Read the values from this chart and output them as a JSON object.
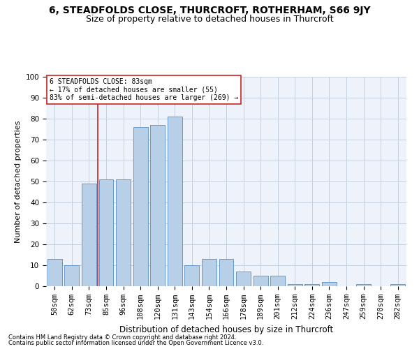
{
  "title": "6, STEADFOLDS CLOSE, THURCROFT, ROTHERHAM, S66 9JY",
  "subtitle": "Size of property relative to detached houses in Thurcroft",
  "xlabel": "Distribution of detached houses by size in Thurcroft",
  "ylabel": "Number of detached properties",
  "categories": [
    "50sqm",
    "62sqm",
    "73sqm",
    "85sqm",
    "96sqm",
    "108sqm",
    "120sqm",
    "131sqm",
    "143sqm",
    "154sqm",
    "166sqm",
    "178sqm",
    "189sqm",
    "201sqm",
    "212sqm",
    "224sqm",
    "236sqm",
    "247sqm",
    "259sqm",
    "270sqm",
    "282sqm"
  ],
  "values": [
    13,
    10,
    49,
    51,
    51,
    76,
    77,
    81,
    10,
    13,
    13,
    7,
    5,
    5,
    1,
    1,
    2,
    0,
    1,
    0,
    1
  ],
  "bar_color": "#b8cfe8",
  "bar_edge_color": "#6699cc",
  "vline_color": "#cc2222",
  "vline_x_idx": 2.5,
  "annotation_title": "6 STEADFOLDS CLOSE: 83sqm",
  "annotation_line1": "← 17% of detached houses are smaller (55)",
  "annotation_line2": "83% of semi-detached houses are larger (269) →",
  "annotation_box_color": "#ffffff",
  "annotation_box_edge": "#cc2222",
  "footer1": "Contains HM Land Registry data © Crown copyright and database right 2024.",
  "footer2": "Contains public sector information licensed under the Open Government Licence v3.0.",
  "ylim": [
    0,
    100
  ],
  "yticks": [
    0,
    10,
    20,
    30,
    40,
    50,
    60,
    70,
    80,
    90,
    100
  ],
  "background_color": "#eef2fa",
  "grid_color": "#c5d0e0",
  "title_fontsize": 10,
  "subtitle_fontsize": 9,
  "xlabel_fontsize": 8.5,
  "ylabel_fontsize": 8,
  "tick_fontsize": 7.5,
  "annotation_fontsize": 7,
  "footer_fontsize": 6
}
